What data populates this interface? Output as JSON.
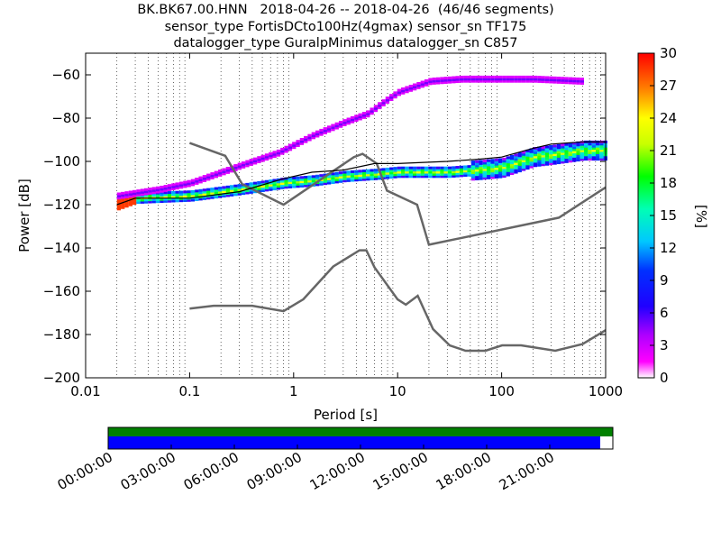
{
  "title_lines": [
    "BK.BK67.00.HNN   2018-04-26 -- 2018-04-26  (46/46 segments)",
    "sensor_type FortisDCto100Hz(4gmax) sensor_sn TF175",
    "datalogger_type GuralpMinimus datalogger_sn C857"
  ],
  "chart_data": {
    "type": "heatmap",
    "subtype": "probabilistic power spectral density",
    "xlabel": "Period [s]",
    "ylabel": "Power [dB]",
    "xscale": "log",
    "xlim": [
      0.01,
      1000
    ],
    "ylim": [
      -200,
      -50
    ],
    "xticks": [
      0.01,
      0.1,
      1,
      10,
      100,
      1000
    ],
    "xtick_labels": [
      "0.01",
      "0.1",
      "1",
      "10",
      "100",
      "1000"
    ],
    "yticks": [
      -200,
      -180,
      -160,
      -140,
      -120,
      -100,
      -80,
      -60
    ],
    "colorbar": {
      "label": "[%]",
      "range": [
        0,
        30
      ],
      "ticks": [
        0,
        3,
        6,
        9,
        12,
        15,
        18,
        21,
        24,
        27,
        30
      ]
    },
    "grid": "dotted vertical at each period",
    "noise_models": {
      "high_noise_model": [
        [
          0.1,
          -91.5
        ],
        [
          0.22,
          -97.4
        ],
        [
          0.32,
          -110.5
        ],
        [
          0.8,
          -120
        ],
        [
          3.8,
          -98
        ],
        [
          4.6,
          -96.5
        ],
        [
          6.3,
          -101
        ],
        [
          7.9,
          -113.5
        ],
        [
          15.4,
          -120
        ],
        [
          20,
          -138.5
        ],
        [
          354.8,
          -126
        ],
        [
          1000,
          -112
        ]
      ],
      "low_noise_model": [
        [
          0.1,
          -168
        ],
        [
          0.17,
          -166.7
        ],
        [
          0.4,
          -166.7
        ],
        [
          0.8,
          -169.2
        ],
        [
          1.24,
          -163.7
        ],
        [
          2.4,
          -148.6
        ],
        [
          4.3,
          -141.1
        ],
        [
          5,
          -141.1
        ],
        [
          6,
          -149
        ],
        [
          10,
          -163.8
        ],
        [
          12,
          -166.2
        ],
        [
          15.6,
          -162.1
        ],
        [
          21.9,
          -177.5
        ],
        [
          31.6,
          -185
        ],
        [
          45,
          -187.5
        ],
        [
          70,
          -187.5
        ],
        [
          101,
          -185
        ],
        [
          154,
          -185
        ],
        [
          328,
          -187.5
        ],
        [
          600,
          -184.4
        ],
        [
          1000,
          -178
        ]
      ]
    },
    "reference_curve": [
      [
        0.02,
        -120
      ],
      [
        0.03,
        -117
      ],
      [
        0.1,
        -117
      ],
      [
        0.3,
        -114
      ],
      [
        0.8,
        -108
      ],
      [
        1.5,
        -105
      ],
      [
        3,
        -104
      ],
      [
        6,
        -101
      ],
      [
        10,
        -101
      ],
      [
        30,
        -100
      ],
      [
        60,
        -99
      ],
      [
        100,
        -98
      ],
      [
        200,
        -94
      ],
      [
        300,
        -92
      ],
      [
        600,
        -91
      ],
      [
        1000,
        -91
      ]
    ],
    "psd_bands": [
      {
        "name": "low-frequency mode",
        "points": [
          [
            0.02,
            -120
          ],
          [
            0.03,
            -117
          ],
          [
            0.1,
            -116
          ],
          [
            0.3,
            -113
          ],
          [
            0.8,
            -110
          ],
          [
            1.5,
            -109
          ],
          [
            3,
            -107
          ],
          [
            6,
            -106
          ],
          [
            10,
            -105
          ],
          [
            30,
            -105
          ],
          [
            60,
            -104
          ],
          [
            100,
            -103
          ],
          [
            200,
            -98
          ],
          [
            300,
            -97
          ],
          [
            600,
            -95
          ],
          [
            1000,
            -95
          ]
        ],
        "intensity": 18
      },
      {
        "name": "upper mode",
        "points": [
          [
            0.02,
            -116
          ],
          [
            0.05,
            -113
          ],
          [
            0.1,
            -110
          ],
          [
            0.3,
            -102
          ],
          [
            0.7,
            -96
          ],
          [
            1.5,
            -88
          ],
          [
            3,
            -82
          ],
          [
            5,
            -78
          ],
          [
            8,
            -71
          ],
          [
            10,
            -68
          ],
          [
            20,
            -63
          ],
          [
            40,
            -62
          ],
          [
            100,
            -62
          ],
          [
            200,
            -62
          ],
          [
            600,
            -63
          ]
        ],
        "intensity": 5
      }
    ]
  },
  "availability": {
    "time_labels": [
      "00:00:00",
      "03:00:00",
      "06:00:00",
      "09:00:00",
      "12:00:00",
      "15:00:00",
      "18:00:00",
      "21:00:00"
    ],
    "data_fraction": 0.975,
    "gap_fraction": 0.025,
    "colors": {
      "data": "#0000ff",
      "overlap": "#008000",
      "gap": "#ffffff"
    }
  },
  "colors": {
    "noise_model": "#666666",
    "reference": "#000000"
  }
}
